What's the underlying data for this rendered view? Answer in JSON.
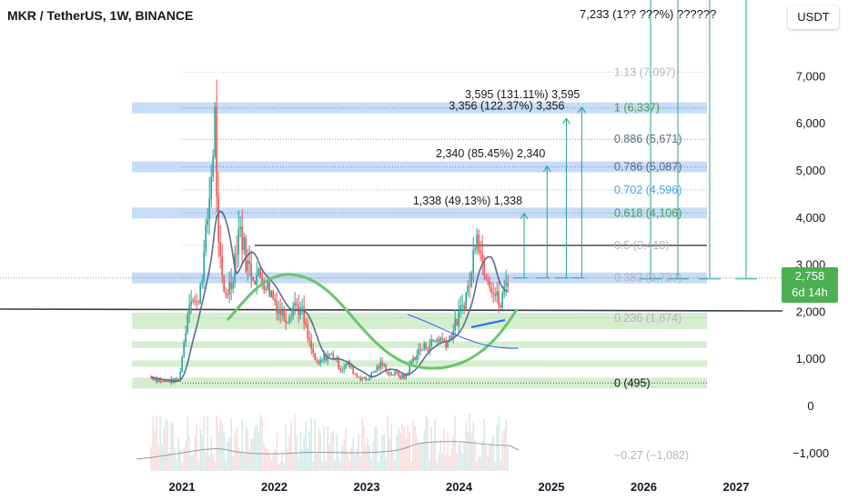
{
  "header": {
    "symbol": "MKR / TetherUS, 1W, BINANCE",
    "currency": "USDT",
    "top_overlap_text": "7,233 (1?? ???%) ??????"
  },
  "price_tag": {
    "price": "2,758",
    "countdown": "6d 14h"
  },
  "colors": {
    "candle_up": "#26a69a",
    "candle_down": "#ef5350",
    "moving_average": "#5b6b8c",
    "arc": "#6cc46c",
    "fib_band_blue": "#c7dcf8",
    "fib_band_green": "#d4eecf",
    "projection": "#26a69a",
    "horizontal_line": "#363a45",
    "trend_line_blue": "#2962ff"
  },
  "chart_data": {
    "type": "candlestick",
    "x_axis": {
      "ticks": [
        "2021",
        "2022",
        "2023",
        "2024",
        "2025",
        "2026",
        "2027"
      ]
    },
    "y_axis": {
      "ticks": [
        -1000,
        0,
        1000,
        2000,
        3000,
        4000,
        5000,
        6000,
        7000
      ],
      "tick_labels": [
        "−1,000",
        "0",
        "1,000",
        "2,000",
        "3,000",
        "4,000",
        "5,000",
        "6,000",
        "7,000"
      ],
      "range": [
        -1400,
        8300
      ]
    },
    "price_path": [
      [
        "2020-09-01",
        620
      ],
      [
        "2020-10-15",
        520
      ],
      [
        "2020-12-01",
        540
      ],
      [
        "2020-12-20",
        560
      ],
      [
        "2021-01-10",
        1400
      ],
      [
        "2021-02-01",
        2400
      ],
      [
        "2021-03-01",
        2100
      ],
      [
        "2021-04-01",
        3300
      ],
      [
        "2021-05-01",
        5200
      ],
      [
        "2021-05-10",
        6300
      ],
      [
        "2021-05-25",
        3300
      ],
      [
        "2021-06-15",
        2400
      ],
      [
        "2021-07-15",
        2600
      ],
      [
        "2021-08-15",
        3900
      ],
      [
        "2021-09-15",
        3000
      ],
      [
        "2021-10-15",
        2800
      ],
      [
        "2021-11-20",
        2700
      ],
      [
        "2021-12-20",
        2400
      ],
      [
        "2022-01-25",
        2000
      ],
      [
        "2022-02-20",
        1900
      ],
      [
        "2022-03-20",
        2200
      ],
      [
        "2022-04-20",
        2000
      ],
      [
        "2022-05-15",
        1400
      ],
      [
        "2022-06-20",
        850
      ],
      [
        "2022-07-20",
        1050
      ],
      [
        "2022-08-20",
        1100
      ],
      [
        "2022-09-20",
        800
      ],
      [
        "2022-10-20",
        900
      ],
      [
        "2022-11-20",
        650
      ],
      [
        "2022-12-31",
        560
      ],
      [
        "2023-02-01",
        760
      ],
      [
        "2023-03-01",
        900
      ],
      [
        "2023-04-01",
        700
      ],
      [
        "2023-05-01",
        680
      ],
      [
        "2023-06-01",
        600
      ],
      [
        "2023-07-01",
        1000
      ],
      [
        "2023-08-01",
        1200
      ],
      [
        "2023-09-01",
        1300
      ],
      [
        "2023-10-15",
        1450
      ],
      [
        "2023-11-15",
        1350
      ],
      [
        "2023-12-15",
        1700
      ],
      [
        "2024-01-20",
        2200
      ],
      [
        "2024-02-20",
        2800
      ],
      [
        "2024-03-10",
        4000
      ],
      [
        "2024-03-30",
        3100
      ],
      [
        "2024-04-20",
        2900
      ],
      [
        "2024-05-20",
        2400
      ],
      [
        "2024-06-15",
        2100
      ],
      [
        "2024-07-01",
        2600
      ],
      [
        "2024-07-15",
        2758
      ]
    ],
    "fibonacci": {
      "levels": [
        {
          "ratio": "0",
          "price": 495,
          "label": "0 (495)",
          "color": "#131722",
          "band": "#d4eecf"
        },
        {
          "ratio": "0.236",
          "price": 1874,
          "label": "0.236 (1,874)",
          "color": "#b2b5be",
          "band": "#d4eecf"
        },
        {
          "ratio": "0.382",
          "price": 2727,
          "label": "0.382 (2,727)",
          "color": "#b2b5be",
          "band": "#c7dcf8"
        },
        {
          "ratio": "0.5",
          "price": 3418,
          "label": "0.5 (3,418)",
          "color": "#b2b5be",
          "band": null
        },
        {
          "ratio": "0.618",
          "price": 4106,
          "label": "0.618 (4,106)",
          "color": "#43a047",
          "band": "#c7dcf8"
        },
        {
          "ratio": "0.702",
          "price": 4596,
          "label": "0.702 (4,596)",
          "color": "#42a5f5",
          "band": null
        },
        {
          "ratio": "0.786",
          "price": 5087,
          "label": "0.786 (5,087)",
          "color": "#5d6a82",
          "band": "#c7dcf8"
        },
        {
          "ratio": "0.886",
          "price": 5671,
          "label": "0.886 (5,671)",
          "color": "#5d6a82",
          "band": null
        },
        {
          "ratio": "1",
          "price": 6337,
          "label": "1 (6,337)",
          "color": "#43a047",
          "band": "#c7dcf8"
        },
        {
          "ratio": "1.13",
          "price": 7097,
          "label": "1.13 (7,097)",
          "color": "#b2b5be",
          "band": null
        }
      ],
      "extra_bands": [
        1700,
        1300,
        900
      ]
    },
    "projections": [
      {
        "date": "2024-09-15",
        "target": 4096,
        "label": "1,338 (49.13%) 1,338"
      },
      {
        "date": "2024-12-15",
        "target": 5098,
        "label": "2,340 (85.45%) 2,340"
      },
      {
        "date": "2025-03-01",
        "target": 6114,
        "label": "3,356 (122.37%) 3,356"
      },
      {
        "date": "2025-05-01",
        "target": 6353,
        "label": "3,595 (131.11%) 3,595"
      }
    ],
    "horizontal_lines": [
      3418,
      2000
    ],
    "volume_oscillator": {
      "label": "−0.27 (−1,082)"
    }
  }
}
